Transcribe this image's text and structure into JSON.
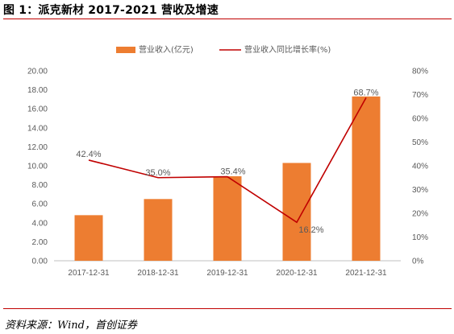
{
  "figure": {
    "title": "图 1：派克新材 2017-2021 营收及增速",
    "source": "资料来源：Wind，首创证券"
  },
  "colors": {
    "bar": "#ed7d31",
    "line": "#c00000",
    "rule": "#c00000",
    "axis": "#595959"
  },
  "chart_data": {
    "type": "bar",
    "title": "",
    "categories": [
      "2017-12-31",
      "2018-12-31",
      "2019-12-31",
      "2020-12-31",
      "2021-12-31"
    ],
    "series": [
      {
        "name": "营业收入(亿元)",
        "type": "bar",
        "axis": "left",
        "values": [
          4.8,
          6.5,
          8.9,
          10.3,
          17.3
        ]
      },
      {
        "name": "营业收入同比增长率(%)",
        "type": "line",
        "axis": "right",
        "values": [
          42.4,
          35.0,
          35.4,
          16.2,
          68.7
        ],
        "labels": [
          "42.4%",
          "35.0%",
          "35.4%",
          "16.2%",
          "68.7%"
        ]
      }
    ],
    "y_left": {
      "lim": [
        0,
        20
      ],
      "ticks": [
        "0.00",
        "2.00",
        "4.00",
        "6.00",
        "8.00",
        "10.00",
        "12.00",
        "14.00",
        "16.00",
        "18.00",
        "20.00"
      ]
    },
    "y_right": {
      "lim": [
        0,
        80
      ],
      "ticks": [
        "0%",
        "10%",
        "20%",
        "30%",
        "40%",
        "50%",
        "60%",
        "70%",
        "80%"
      ]
    },
    "legend": "top",
    "grid": false
  }
}
